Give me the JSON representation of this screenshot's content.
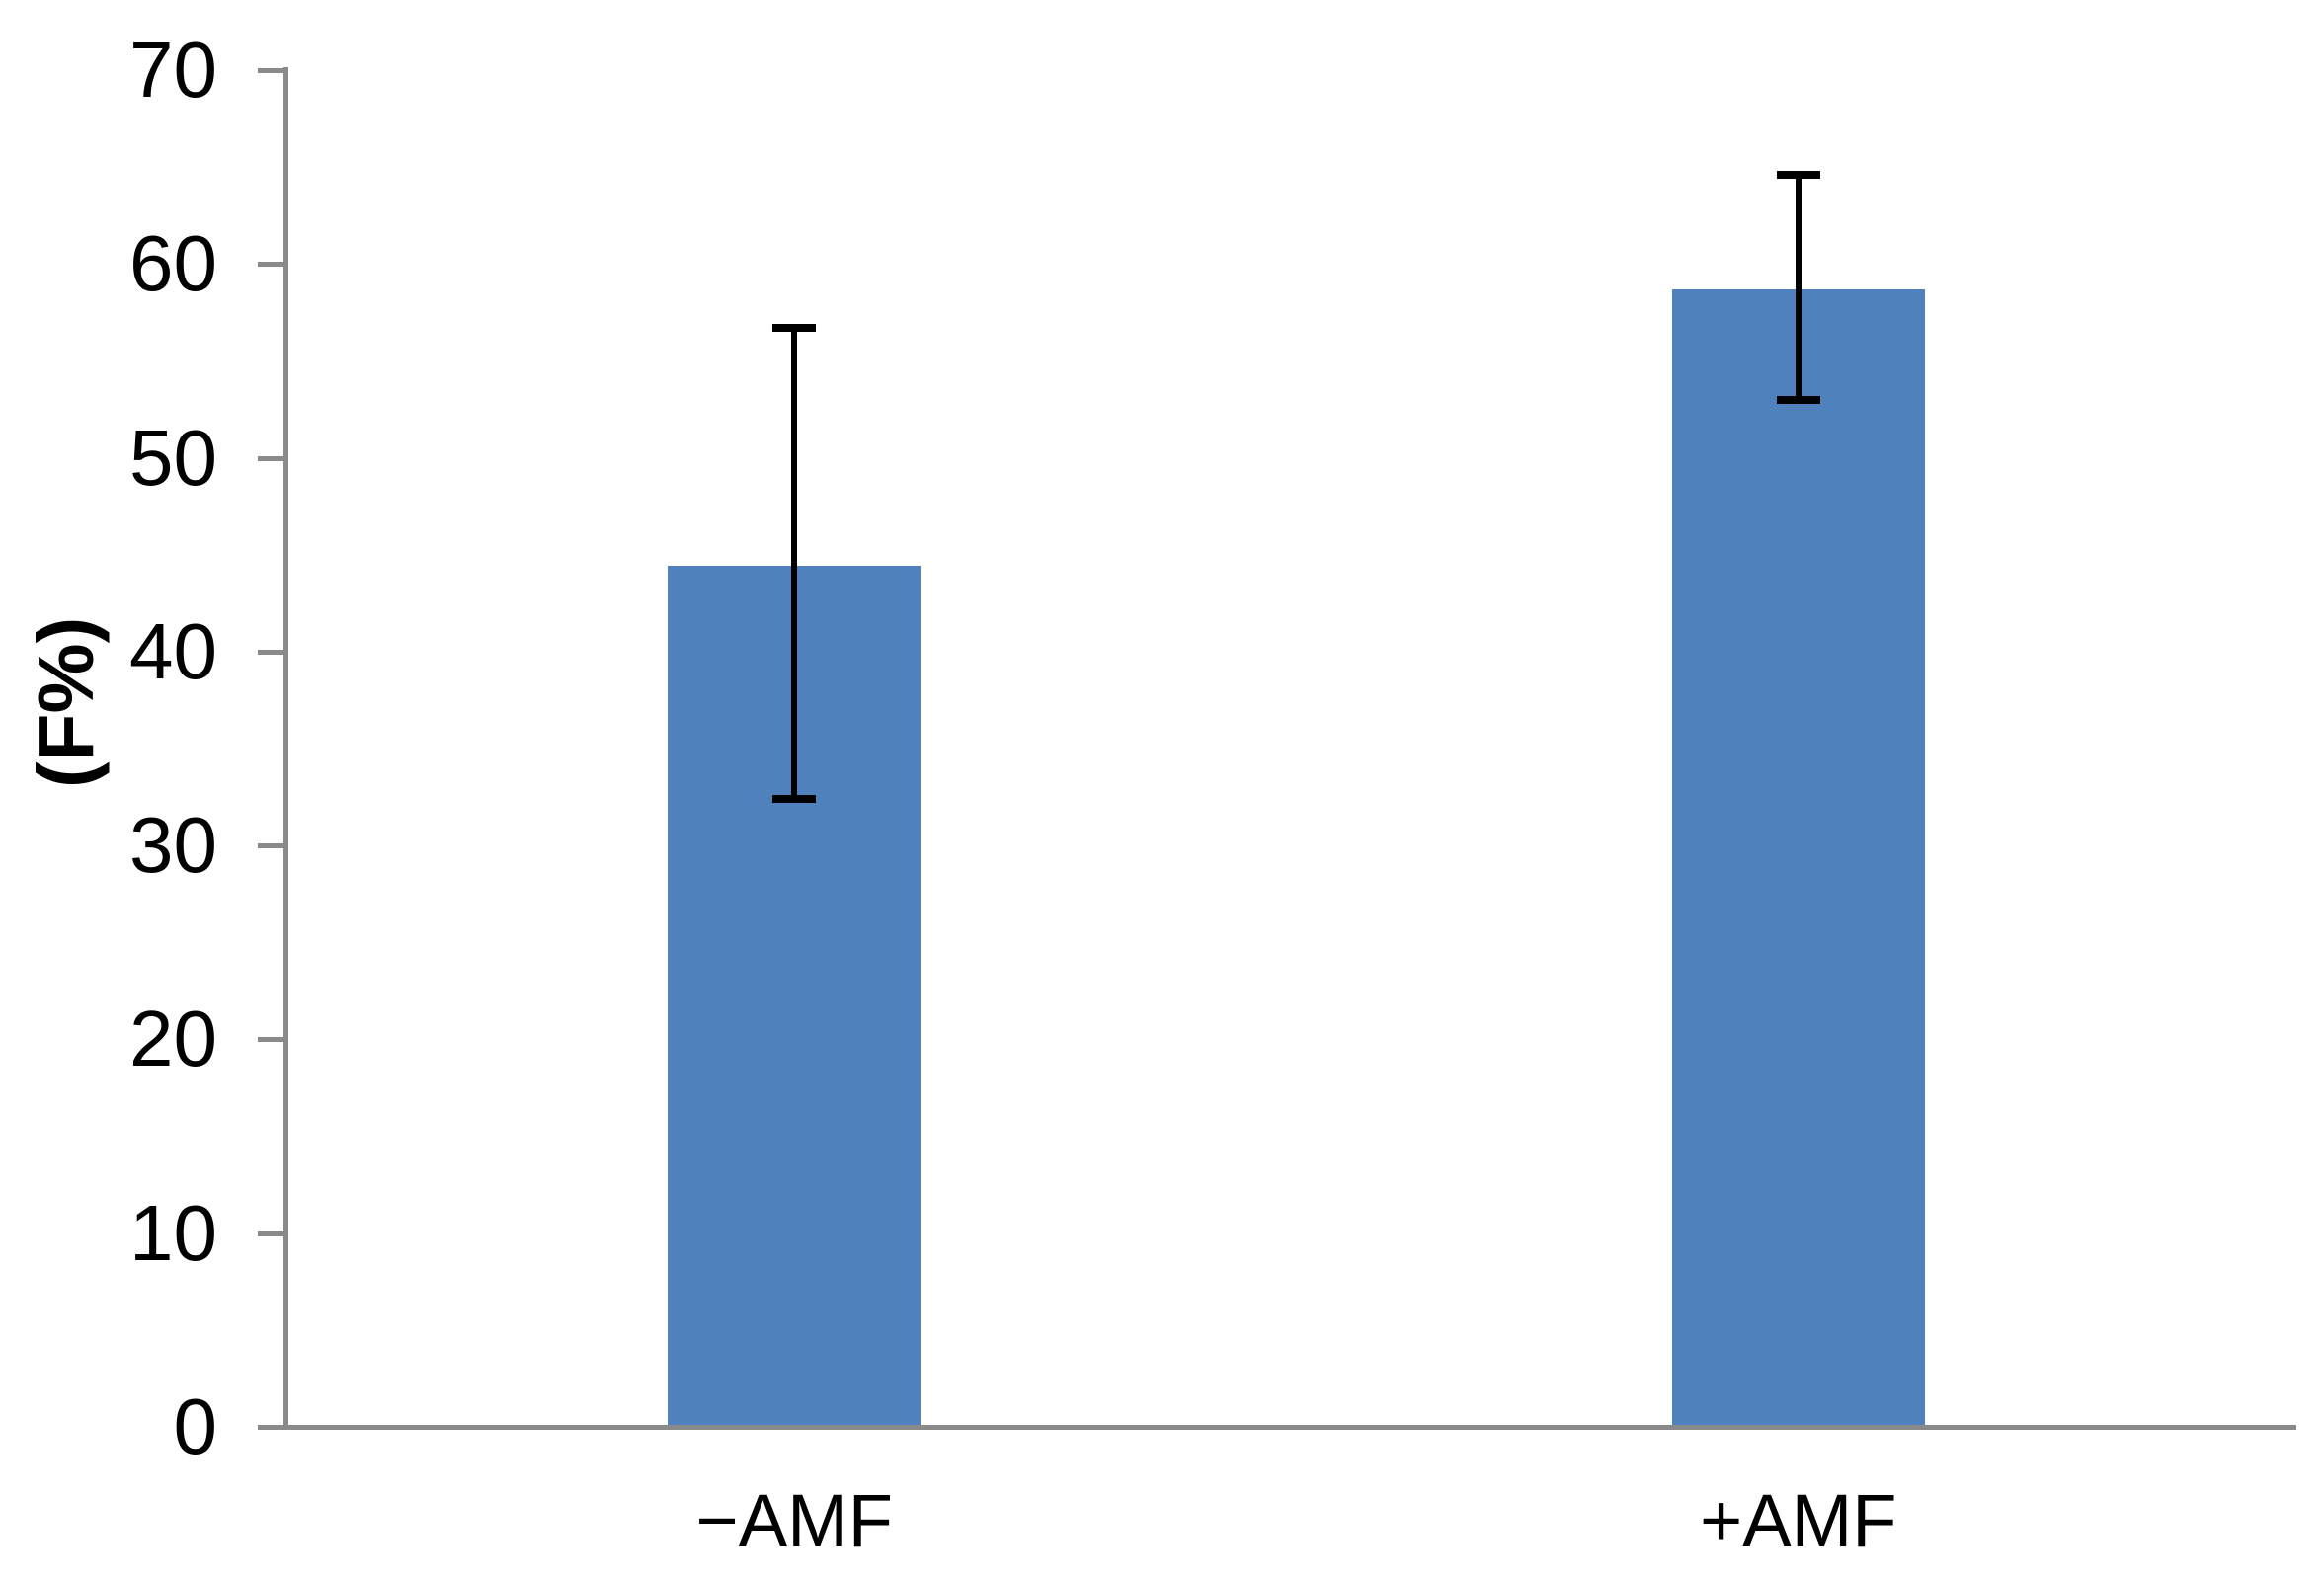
{
  "chart_data": {
    "type": "bar",
    "title": "",
    "xlabel": "",
    "ylabel": "(F%)",
    "categories": [
      "−AMF",
      "+AMF"
    ],
    "values": [
      44.4,
      58.7
    ],
    "error_plus": [
      12.3,
      5.9
    ],
    "error_minus": [
      12.0,
      5.7
    ],
    "ylim": [
      0,
      70
    ],
    "yticks": [
      0,
      10,
      20,
      30,
      40,
      50,
      60,
      70
    ],
    "grid": false,
    "legend": false,
    "bar_color": "#4F81BD",
    "axis_color": "#8a8a8a",
    "error_bar_color": "#000000",
    "tick_label_color": "#000000"
  }
}
